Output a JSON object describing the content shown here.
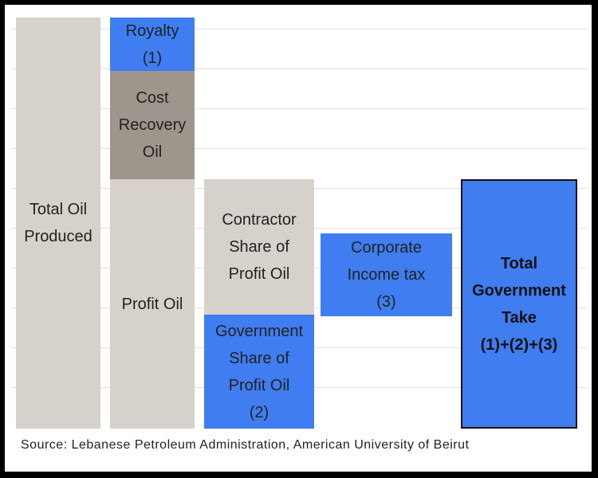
{
  "boxes": {
    "total_oil": [
      "Total Oil",
      "Produced"
    ],
    "royalty": [
      "Royalty",
      "(1)"
    ],
    "cost_recovery": [
      "Cost",
      "Recovery",
      "Oil"
    ],
    "profit_oil": [
      "Profit Oil"
    ],
    "contractor_share": [
      "Contractor",
      "Share of",
      "Profit Oil"
    ],
    "government_share": [
      "Government",
      "Share of",
      "Profit Oil",
      "(2)"
    ],
    "corporate_tax": [
      "Corporate",
      "Income tax",
      "(3)"
    ],
    "total_take": [
      "Total",
      "Government",
      "Take",
      "(1)+(2)+(3)"
    ]
  },
  "colors": {
    "beige": "#d6d1ca",
    "taupe": "#9e958c",
    "blue": "#3f7df0"
  },
  "source": "Source: Lebanese Petroleum Administration, American University of Beirut"
}
